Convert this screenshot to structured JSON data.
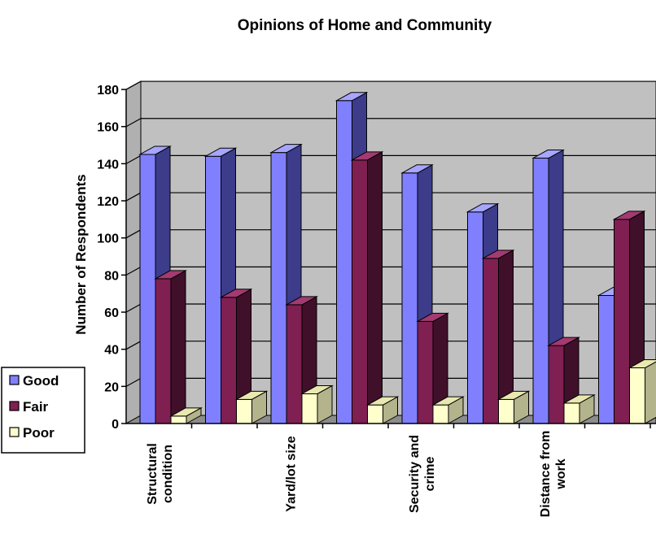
{
  "chart_data": {
    "type": "bar",
    "title": "Opinions of Home and Community",
    "xlabel": "",
    "ylabel": "Number of Respondents",
    "ylim": [
      0,
      180
    ],
    "ytick_step": 20,
    "grid": true,
    "legend_position": "left",
    "categories": [
      [
        "Structural",
        "condition"
      ],
      [],
      [
        "Yard/lot size"
      ],
      [],
      [
        "Security and",
        "crime"
      ],
      [],
      [
        "Distance from",
        "work"
      ],
      []
    ],
    "series": [
      {
        "name": "Good",
        "values": [
          145,
          144,
          146,
          174,
          135,
          114,
          143,
          69
        ],
        "color": "#8080ff",
        "side_color": "#3c3c8a",
        "top_color": "#a6a6ff"
      },
      {
        "name": "Fair",
        "values": [
          78,
          68,
          64,
          142,
          55,
          89,
          42,
          110
        ],
        "color": "#7f1f52",
        "side_color": "#40102a",
        "top_color": "#a33a72"
      },
      {
        "name": "Poor",
        "values": [
          4,
          13,
          16,
          10,
          10,
          13,
          11,
          30
        ],
        "color": "#ffffcc",
        "side_color": "#b3b38c",
        "top_color": "#e8e8b0"
      }
    ],
    "plot_background": "#c0c0c0",
    "wall_color": "#c0c0c0"
  }
}
